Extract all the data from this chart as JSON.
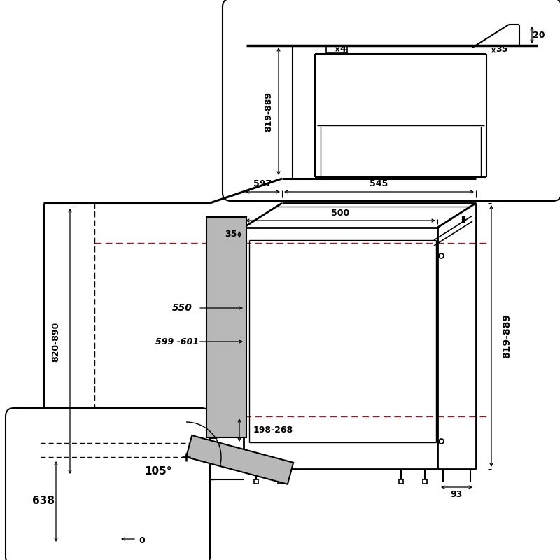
{
  "bg": "#ffffff",
  "lc": "#000000",
  "gray": "#b8b8b8",
  "red": "#dd0000",
  "labels": {
    "545": "545",
    "597": "597",
    "500": "500",
    "35": "35",
    "198_268": "198-268",
    "93": "93",
    "819_889": "819-889",
    "820_890": "820-890",
    "550": "550",
    "599_601": "599 -601",
    "top_4": "4",
    "top_20": "20",
    "top_35": "35",
    "top_819": "819-889",
    "b_105": "105°",
    "b_638": "638",
    "b_0": "0"
  }
}
